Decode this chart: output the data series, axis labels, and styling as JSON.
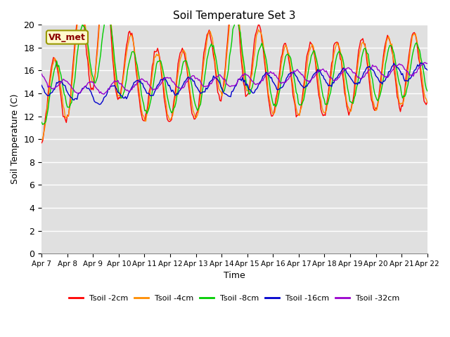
{
  "title": "Soil Temperature Set 3",
  "xlabel": "Time",
  "ylabel": "Soil Temperature (C)",
  "ylim": [
    0,
    20
  ],
  "annotation": "VR_met",
  "annotation_color": "#8B0000",
  "annotation_bg": "#FFFACD",
  "bg_color": "#E0E0E0",
  "grid_color": "#FFFFFF",
  "xtick_labels": [
    "Apr 7",
    "Apr 8",
    "Apr 9",
    "Apr 10",
    "Apr 11",
    "Apr 12",
    "Apr 13",
    "Apr 14",
    "Apr 15",
    "Apr 16",
    "Apr 17",
    "Apr 18",
    "Apr 19",
    "Apr 20",
    "Apr 21",
    "Apr 22"
  ],
  "ytick_labels": [
    0,
    2,
    4,
    6,
    8,
    10,
    12,
    14,
    16,
    18,
    20
  ],
  "series": [
    {
      "label": "Tsoil -2cm",
      "color": "#FF0000"
    },
    {
      "label": "Tsoil -4cm",
      "color": "#FF8C00"
    },
    {
      "label": "Tsoil -8cm",
      "color": "#00CC00"
    },
    {
      "label": "Tsoil -16cm",
      "color": "#0000CC"
    },
    {
      "label": "Tsoil -32cm",
      "color": "#9900CC"
    }
  ]
}
